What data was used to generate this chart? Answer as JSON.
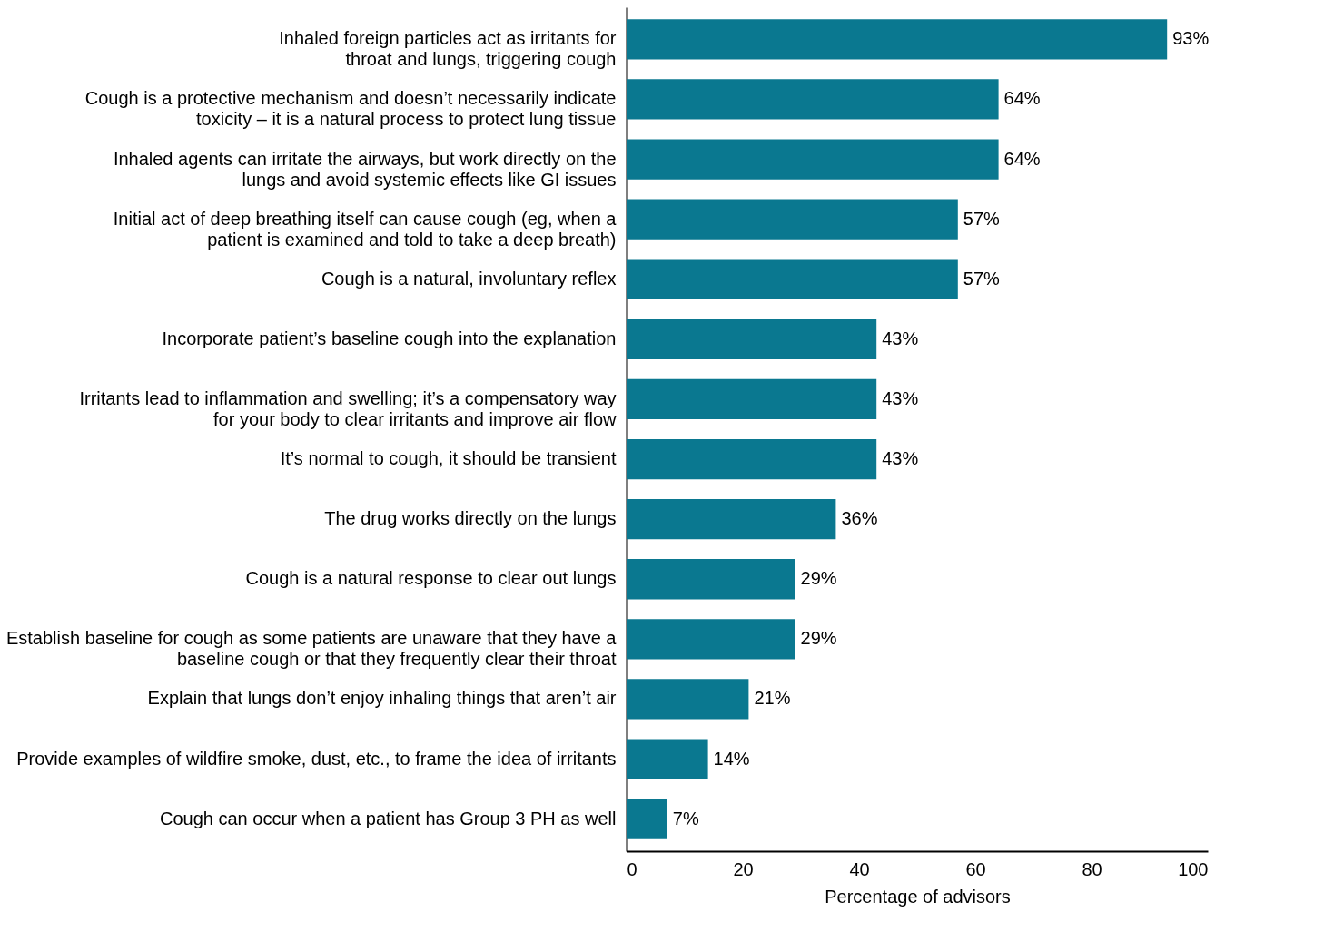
{
  "chart_data": {
    "type": "bar",
    "orientation": "horizontal",
    "xlabel": "Percentage of advisors",
    "categories": [
      "Inhaled foreign particles act as irritants for throat and lungs, triggering cough",
      "Cough is a protective mechanism and doesn’t necessarily indicate toxicity – it is a natural process to protect lung tissue",
      "Inhaled agents can irritate the airways, but work directly on the lungs and avoid systemic effects like GI issues",
      "Initial act of deep breathing itself can cause cough (eg, when a patient is examined and told to take a deep breath)",
      "Cough is a natural, involuntary reflex",
      "Incorporate patient’s baseline cough into the explanation",
      "Irritants lead to inflammation and swelling; it’s a compensatory way for your body to clear irritants and improve air flow",
      "It’s normal to cough, it should be transient",
      "The drug works directly on the lungs",
      "Cough is a natural response to clear out lungs",
      "Establish baseline for cough as some patients are unaware that they have a baseline cough or that they frequently clear their throat",
      "Explain that lungs don’t enjoy inhaling things that aren’t air",
      "Provide examples of wildfire smoke, dust, etc., to frame the idea of irritants",
      "Cough can occur when a patient has Group 3 PH as well"
    ],
    "values": [
      93,
      64,
      64,
      57,
      57,
      43,
      43,
      43,
      36,
      29,
      29,
      21,
      14,
      7
    ],
    "value_labels": [
      "93%",
      "64%",
      "64%",
      "57%",
      "57%",
      "43%",
      "43%",
      "43%",
      "36%",
      "29%",
      "29%",
      "21%",
      "14%",
      "7%"
    ],
    "color": "#0a7890",
    "xlim": [
      0,
      100
    ],
    "xticks": [
      0,
      20,
      40,
      60,
      80,
      100
    ],
    "grid": false
  }
}
